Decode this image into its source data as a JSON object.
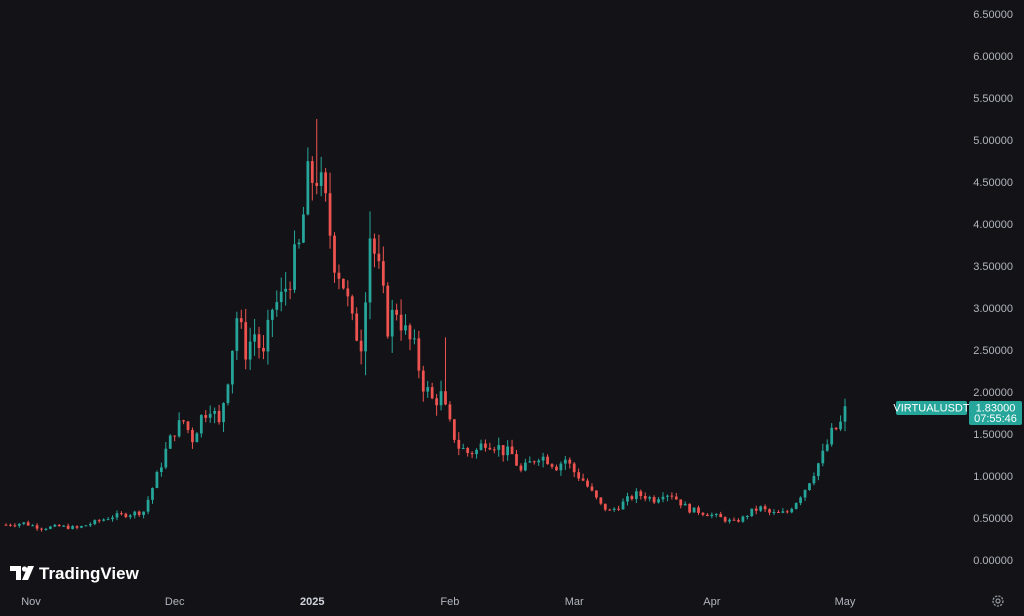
{
  "chart_data": {
    "type": "candlestick",
    "symbol": "VIRTUALUSDT",
    "last_price": "1.83000",
    "countdown": "07:55:46",
    "brand": "TradingView",
    "ylim": [
      -0.05,
      6.6
    ],
    "y_ticks": [
      {
        "value": 6.5,
        "label": "6.50000"
      },
      {
        "value": 6.0,
        "label": "6.00000"
      },
      {
        "value": 5.5,
        "label": "5.50000"
      },
      {
        "value": 5.0,
        "label": "5.00000"
      },
      {
        "value": 4.5,
        "label": "4.50000"
      },
      {
        "value": 4.0,
        "label": "4.00000"
      },
      {
        "value": 3.5,
        "label": "3.50000"
      },
      {
        "value": 3.0,
        "label": "3.00000"
      },
      {
        "value": 2.5,
        "label": "2.50000"
      },
      {
        "value": 2.0,
        "label": "2.00000"
      },
      {
        "value": 1.5,
        "label": "1.50000"
      },
      {
        "value": 1.0,
        "label": "1.00000"
      },
      {
        "value": 0.5,
        "label": "0.50000"
      },
      {
        "value": 0.0,
        "label": "0.00000"
      }
    ],
    "x_ticks": [
      {
        "label": "Nov",
        "index": 8,
        "bold": false
      },
      {
        "label": "Dec",
        "index": 38,
        "bold": false
      },
      {
        "label": "2025",
        "index": 69,
        "bold": true
      },
      {
        "label": "Feb",
        "index": 100,
        "bold": false
      },
      {
        "label": "Mar",
        "index": 128,
        "bold": false
      },
      {
        "label": "Apr",
        "index": 159,
        "bold": false
      },
      {
        "label": "May",
        "index": 189,
        "bold": false
      }
    ],
    "colors": {
      "up": "#26a69a",
      "down": "#ef5350",
      "background": "#131317",
      "axis_text": "#b2b5be",
      "label_bg": "#26a69a"
    },
    "anchors": [
      [
        0,
        0.42
      ],
      [
        4,
        0.44
      ],
      [
        8,
        0.38
      ],
      [
        12,
        0.4
      ],
      [
        16,
        0.38
      ],
      [
        20,
        0.45
      ],
      [
        24,
        0.52
      ],
      [
        28,
        0.55
      ],
      [
        31,
        0.58
      ],
      [
        32,
        0.72
      ],
      [
        34,
        1.0
      ],
      [
        36,
        1.3
      ],
      [
        38,
        1.55
      ],
      [
        40,
        1.65
      ],
      [
        42,
        1.45
      ],
      [
        44,
        1.7
      ],
      [
        46,
        1.85
      ],
      [
        48,
        1.6
      ],
      [
        50,
        2.2
      ],
      [
        52,
        2.9
      ],
      [
        54,
        2.5
      ],
      [
        56,
        2.7
      ],
      [
        58,
        2.4
      ],
      [
        60,
        3.0
      ],
      [
        62,
        3.1
      ],
      [
        64,
        3.4
      ],
      [
        66,
        3.7
      ],
      [
        68,
        4.5
      ],
      [
        70,
        4.6
      ],
      [
        72,
        4.2
      ],
      [
        74,
        3.6
      ],
      [
        76,
        3.3
      ],
      [
        78,
        2.8
      ],
      [
        80,
        2.6
      ],
      [
        82,
        3.9
      ],
      [
        84,
        3.4
      ],
      [
        86,
        2.8
      ],
      [
        88,
        3.0
      ],
      [
        90,
        2.7
      ],
      [
        92,
        2.5
      ],
      [
        94,
        2.1
      ],
      [
        96,
        1.9
      ],
      [
        98,
        1.95
      ],
      [
        100,
        1.6
      ],
      [
        102,
        1.35
      ],
      [
        104,
        1.28
      ],
      [
        106,
        1.3
      ],
      [
        108,
        1.42
      ],
      [
        110,
        1.38
      ],
      [
        112,
        1.3
      ],
      [
        114,
        1.25
      ],
      [
        116,
        1.05
      ],
      [
        118,
        1.15
      ],
      [
        120,
        1.25
      ],
      [
        122,
        1.2
      ],
      [
        124,
        1.12
      ],
      [
        126,
        1.2
      ],
      [
        128,
        1.05
      ],
      [
        130,
        0.95
      ],
      [
        132,
        0.8
      ],
      [
        134,
        0.65
      ],
      [
        136,
        0.58
      ],
      [
        138,
        0.64
      ],
      [
        140,
        0.72
      ],
      [
        142,
        0.78
      ],
      [
        144,
        0.76
      ],
      [
        146,
        0.72
      ],
      [
        148,
        0.8
      ],
      [
        150,
        0.78
      ],
      [
        152,
        0.68
      ],
      [
        154,
        0.6
      ],
      [
        156,
        0.58
      ],
      [
        158,
        0.55
      ],
      [
        160,
        0.52
      ],
      [
        162,
        0.48
      ],
      [
        164,
        0.45
      ],
      [
        166,
        0.5
      ],
      [
        168,
        0.58
      ],
      [
        170,
        0.62
      ],
      [
        172,
        0.56
      ],
      [
        174,
        0.55
      ],
      [
        176,
        0.57
      ],
      [
        178,
        0.7
      ],
      [
        180,
        0.85
      ],
      [
        182,
        1.05
      ],
      [
        184,
        1.25
      ],
      [
        186,
        1.5
      ],
      [
        188,
        1.62
      ],
      [
        189,
        1.83
      ]
    ]
  }
}
